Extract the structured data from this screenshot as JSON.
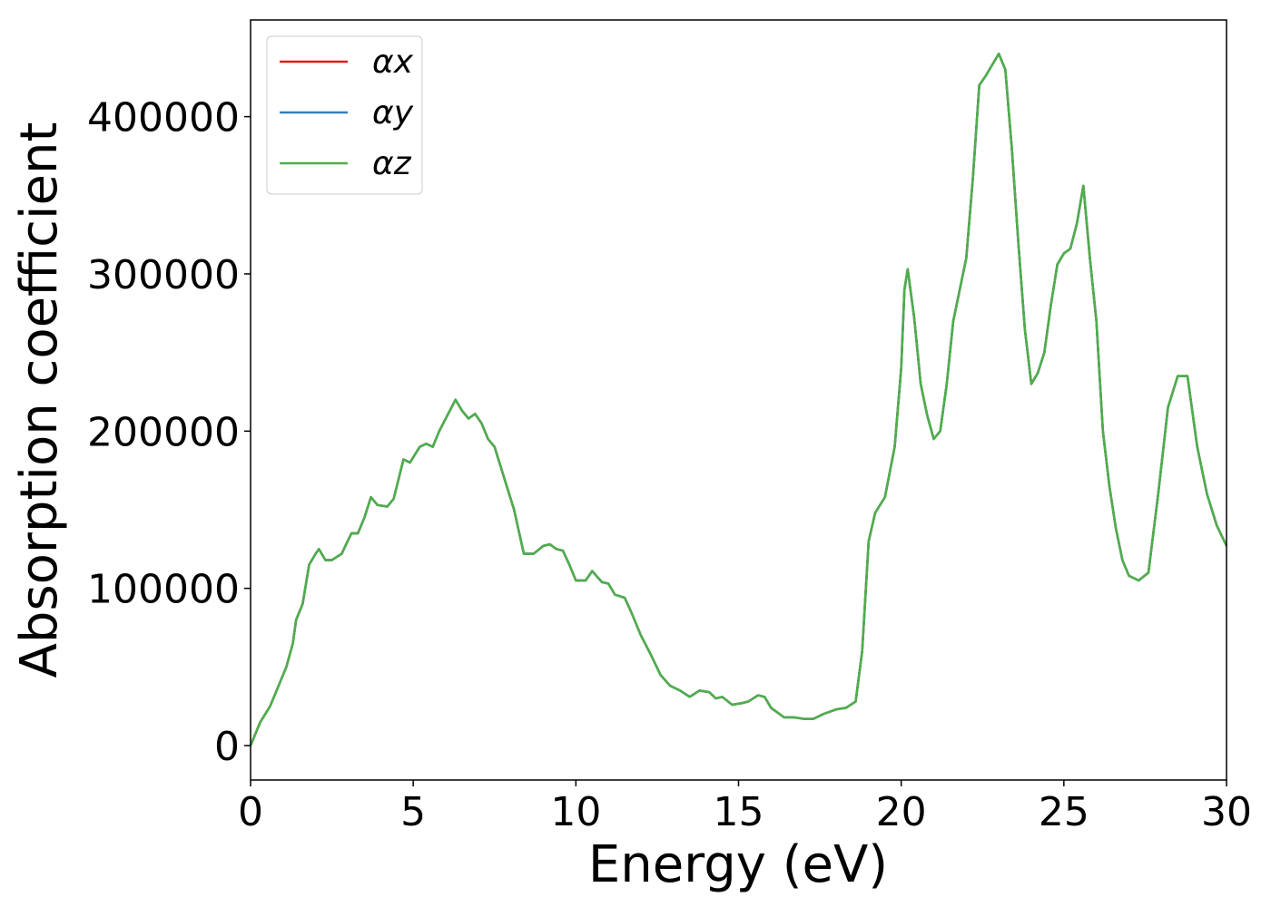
{
  "chart_data": {
    "type": "line",
    "xlabel": "Energy (eV)",
    "ylabel": "Absorption coefficient",
    "x": [
      0,
      0.3,
      0.6,
      0.9,
      1.1,
      1.3,
      1.4,
      1.6,
      1.8,
      2.0,
      2.1,
      2.3,
      2.5,
      2.8,
      3.1,
      3.3,
      3.5,
      3.7,
      3.9,
      4.2,
      4.4,
      4.7,
      4.9,
      5.2,
      5.4,
      5.6,
      5.8,
      6.0,
      6.3,
      6.5,
      6.7,
      6.9,
      7.1,
      7.3,
      7.5,
      7.8,
      8.1,
      8.4,
      8.7,
      9.0,
      9.2,
      9.4,
      9.6,
      9.8,
      10.0,
      10.3,
      10.5,
      10.8,
      11.0,
      11.2,
      11.5,
      11.7,
      12.0,
      12.3,
      12.6,
      12.9,
      13.2,
      13.5,
      13.8,
      14.1,
      14.3,
      14.5,
      14.8,
      15.1,
      15.3,
      15.6,
      15.8,
      16.0,
      16.4,
      16.7,
      17.0,
      17.3,
      17.6,
      18.0,
      18.3,
      18.6,
      18.8,
      19.0,
      19.2,
      19.5,
      19.8,
      20.0,
      20.1,
      20.2,
      20.4,
      20.6,
      20.8,
      21.0,
      21.2,
      21.4,
      21.6,
      21.8,
      22.0,
      22.2,
      22.4,
      22.6,
      22.8,
      23.0,
      23.2,
      23.4,
      23.6,
      23.8,
      24.0,
      24.2,
      24.4,
      24.6,
      24.8,
      25.0,
      25.2,
      25.4,
      25.6,
      25.8,
      26.0,
      26.2,
      26.4,
      26.6,
      26.8,
      27.0,
      27.3,
      27.6,
      27.9,
      28.2,
      28.5,
      28.8,
      29.1,
      29.4,
      29.7,
      30.0
    ],
    "series": [
      {
        "name": "αx",
        "color": "#e41a1c",
        "values": [
          0,
          15000,
          25000,
          40000,
          50000,
          65000,
          80000,
          90000,
          115000,
          122000,
          125000,
          118000,
          118000,
          122000,
          135000,
          135000,
          145000,
          158000,
          153000,
          152000,
          157000,
          182000,
          180000,
          190000,
          192000,
          190000,
          200000,
          208000,
          220000,
          213000,
          208000,
          211000,
          205000,
          195000,
          190000,
          170000,
          150000,
          122000,
          122000,
          127000,
          128000,
          125000,
          124000,
          115000,
          105000,
          105000,
          111000,
          104000,
          103000,
          96000,
          94000,
          85000,
          70000,
          58000,
          45000,
          38000,
          35000,
          31000,
          35000,
          34000,
          30000,
          31000,
          26000,
          27000,
          28000,
          32000,
          31000,
          24000,
          18000,
          18000,
          17000,
          17000,
          20000,
          23000,
          24000,
          28000,
          60000,
          130000,
          148000,
          158000,
          190000,
          240000,
          290000,
          303000,
          272000,
          230000,
          210000,
          195000,
          200000,
          230000,
          270000,
          290000,
          310000,
          360000,
          420000,
          426000,
          433000,
          440000,
          430000,
          380000,
          320000,
          265000,
          230000,
          237000,
          250000,
          280000,
          306000,
          313000,
          316000,
          332000,
          356000,
          310000,
          270000,
          200000,
          165000,
          138000,
          118000,
          108000,
          105000,
          110000,
          160000,
          215000,
          235000,
          235000,
          190000,
          160000,
          140000,
          127000
        ]
      },
      {
        "name": "αy",
        "color": "#377eb8",
        "values": [
          0,
          15000,
          25000,
          40000,
          50000,
          65000,
          80000,
          90000,
          115000,
          122000,
          125000,
          118000,
          118000,
          122000,
          135000,
          135000,
          145000,
          158000,
          153000,
          152000,
          157000,
          182000,
          180000,
          190000,
          192000,
          190000,
          200000,
          208000,
          220000,
          213000,
          208000,
          211000,
          205000,
          195000,
          190000,
          170000,
          150000,
          122000,
          122000,
          127000,
          128000,
          125000,
          124000,
          115000,
          105000,
          105000,
          111000,
          104000,
          103000,
          96000,
          94000,
          85000,
          70000,
          58000,
          45000,
          38000,
          35000,
          31000,
          35000,
          34000,
          30000,
          31000,
          26000,
          27000,
          28000,
          32000,
          31000,
          24000,
          18000,
          18000,
          17000,
          17000,
          20000,
          23000,
          24000,
          28000,
          60000,
          130000,
          148000,
          158000,
          190000,
          240000,
          290000,
          303000,
          272000,
          230000,
          210000,
          195000,
          200000,
          230000,
          270000,
          290000,
          310000,
          360000,
          420000,
          426000,
          433000,
          440000,
          430000,
          380000,
          320000,
          265000,
          230000,
          237000,
          250000,
          280000,
          306000,
          313000,
          316000,
          332000,
          356000,
          310000,
          270000,
          200000,
          165000,
          138000,
          118000,
          108000,
          105000,
          110000,
          160000,
          215000,
          235000,
          235000,
          190000,
          160000,
          140000,
          127000
        ]
      },
      {
        "name": "αz",
        "color": "#4daf4a",
        "values": [
          0,
          15000,
          25000,
          40000,
          50000,
          65000,
          80000,
          90000,
          115000,
          122000,
          125000,
          118000,
          118000,
          122000,
          135000,
          135000,
          145000,
          158000,
          153000,
          152000,
          157000,
          182000,
          180000,
          190000,
          192000,
          190000,
          200000,
          208000,
          220000,
          213000,
          208000,
          211000,
          205000,
          195000,
          190000,
          170000,
          150000,
          122000,
          122000,
          127000,
          128000,
          125000,
          124000,
          115000,
          105000,
          105000,
          111000,
          104000,
          103000,
          96000,
          94000,
          85000,
          70000,
          58000,
          45000,
          38000,
          35000,
          31000,
          35000,
          34000,
          30000,
          31000,
          26000,
          27000,
          28000,
          32000,
          31000,
          24000,
          18000,
          18000,
          17000,
          17000,
          20000,
          23000,
          24000,
          28000,
          60000,
          130000,
          148000,
          158000,
          190000,
          240000,
          290000,
          303000,
          272000,
          230000,
          210000,
          195000,
          200000,
          230000,
          270000,
          290000,
          310000,
          360000,
          420000,
          426000,
          433000,
          440000,
          430000,
          380000,
          320000,
          265000,
          230000,
          237000,
          250000,
          280000,
          306000,
          313000,
          316000,
          332000,
          356000,
          310000,
          270000,
          200000,
          165000,
          138000,
          118000,
          108000,
          105000,
          110000,
          160000,
          215000,
          235000,
          235000,
          190000,
          160000,
          140000,
          127000
        ]
      }
    ],
    "xlim": [
      0,
      30
    ],
    "xticks": [
      0,
      5,
      10,
      15,
      20,
      25,
      30
    ],
    "ylim": [
      -21900,
      461500
    ],
    "yticks": [
      0,
      100000,
      200000,
      300000,
      400000
    ],
    "legend": "upper left"
  }
}
